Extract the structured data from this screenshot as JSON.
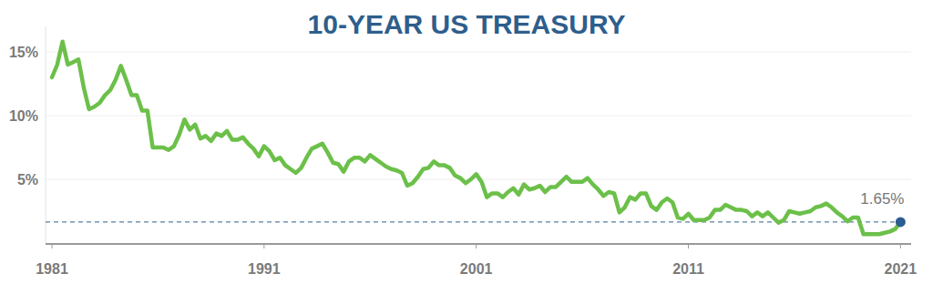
{
  "chart_data": {
    "type": "line",
    "title": "10-YEAR US TREASURY",
    "color": "#6cc04a",
    "grid": true,
    "xlim": [
      1980.7,
      2021.5
    ],
    "xticks": [
      1981,
      1991,
      2001,
      2011,
      2021
    ],
    "ylim": [
      0,
      17
    ],
    "yticks": [
      {
        "value": 5,
        "label": "5%"
      },
      {
        "value": 10,
        "label": "10%"
      },
      {
        "value": 15,
        "label": "15%"
      }
    ],
    "x": [
      1981,
      1981.25,
      1981.5,
      1981.75,
      1982,
      1982.25,
      1982.5,
      1982.75,
      1983,
      1983.25,
      1983.5,
      1983.75,
      1984,
      1984.25,
      1984.5,
      1984.75,
      1985,
      1985.25,
      1985.5,
      1985.75,
      1986,
      1986.25,
      1986.5,
      1986.75,
      1987,
      1987.25,
      1987.5,
      1987.75,
      1988,
      1988.25,
      1988.5,
      1988.75,
      1989,
      1989.25,
      1989.5,
      1989.75,
      1990,
      1990.25,
      1990.5,
      1990.75,
      1991,
      1991.25,
      1991.5,
      1991.75,
      1992,
      1992.25,
      1992.5,
      1992.75,
      1993,
      1993.25,
      1993.5,
      1993.75,
      1994,
      1994.25,
      1994.5,
      1994.75,
      1995,
      1995.25,
      1995.5,
      1995.75,
      1996,
      1996.25,
      1996.5,
      1996.75,
      1997,
      1997.25,
      1997.5,
      1997.75,
      1998,
      1998.25,
      1998.5,
      1998.75,
      1999,
      1999.25,
      1999.5,
      1999.75,
      2000,
      2000.25,
      2000.5,
      2000.75,
      2001,
      2001.25,
      2001.5,
      2001.75,
      2002,
      2002.25,
      2002.5,
      2002.75,
      2003,
      2003.25,
      2003.5,
      2003.75,
      2004,
      2004.25,
      2004.5,
      2004.75,
      2005,
      2005.25,
      2005.5,
      2005.75,
      2006,
      2006.25,
      2006.5,
      2006.75,
      2007,
      2007.25,
      2007.5,
      2007.75,
      2008,
      2008.25,
      2008.5,
      2008.75,
      2009,
      2009.25,
      2009.5,
      2009.75,
      2010,
      2010.25,
      2010.5,
      2010.75,
      2011,
      2011.25,
      2011.5,
      2011.75,
      2012,
      2012.25,
      2012.5,
      2012.75,
      2013,
      2013.25,
      2013.5,
      2013.75,
      2014,
      2014.25,
      2014.5,
      2014.75,
      2015,
      2015.25,
      2015.5,
      2015.75,
      2016,
      2016.25,
      2016.5,
      2016.75,
      2017,
      2017.25,
      2017.5,
      2017.75,
      2018,
      2018.25,
      2018.5,
      2018.75,
      2019,
      2019.25,
      2019.5,
      2019.75,
      2020,
      2020.25,
      2020.5,
      2020.75,
      2021
    ],
    "values": [
      13.0,
      14.0,
      15.8,
      14.0,
      14.2,
      14.4,
      12.2,
      10.5,
      10.7,
      11.0,
      11.6,
      12.0,
      12.8,
      13.9,
      12.8,
      11.6,
      11.6,
      10.4,
      10.4,
      7.5,
      7.5,
      7.5,
      7.3,
      7.6,
      8.5,
      9.7,
      8.9,
      9.3,
      8.2,
      8.4,
      8.0,
      8.6,
      8.4,
      8.8,
      8.1,
      8.1,
      8.3,
      7.8,
      7.4,
      6.8,
      7.6,
      7.2,
      6.5,
      6.7,
      6.1,
      5.8,
      5.5,
      5.9,
      6.7,
      7.4,
      7.6,
      7.8,
      7.1,
      6.3,
      6.2,
      5.6,
      6.4,
      6.7,
      6.7,
      6.4,
      6.9,
      6.6,
      6.3,
      6.0,
      5.8,
      5.7,
      5.5,
      4.5,
      4.7,
      5.2,
      5.8,
      5.9,
      6.4,
      6.1,
      6.1,
      5.9,
      5.3,
      5.1,
      4.7,
      5.0,
      5.4,
      4.8,
      3.6,
      3.9,
      3.9,
      3.6,
      4.0,
      4.3,
      3.8,
      4.6,
      4.2,
      4.3,
      4.5,
      4.0,
      4.4,
      4.4,
      4.8,
      5.2,
      4.8,
      4.8,
      4.8,
      5.1,
      4.6,
      4.2,
      3.7,
      4.0,
      3.9,
      2.4,
      2.8,
      3.6,
      3.4,
      3.9,
      3.9,
      2.9,
      2.6,
      3.2,
      3.5,
      3.2,
      2.0,
      1.9,
      2.3,
      1.8,
      1.8,
      1.8,
      2.0,
      2.6,
      2.6,
      3.0,
      2.8,
      2.6,
      2.6,
      2.5,
      2.1,
      2.4,
      2.1,
      2.4,
      2.0,
      1.6,
      1.8,
      2.5,
      2.4,
      2.3,
      2.4,
      2.5,
      2.8,
      2.9,
      3.1,
      2.8,
      2.4,
      2.1,
      1.7,
      2.0,
      2.0,
      0.7,
      0.7,
      0.7,
      0.7,
      0.8,
      0.9,
      1.1,
      1.65
    ],
    "annotations": [
      {
        "text": "1.65%",
        "x": 2021,
        "y": 1.65
      }
    ]
  }
}
